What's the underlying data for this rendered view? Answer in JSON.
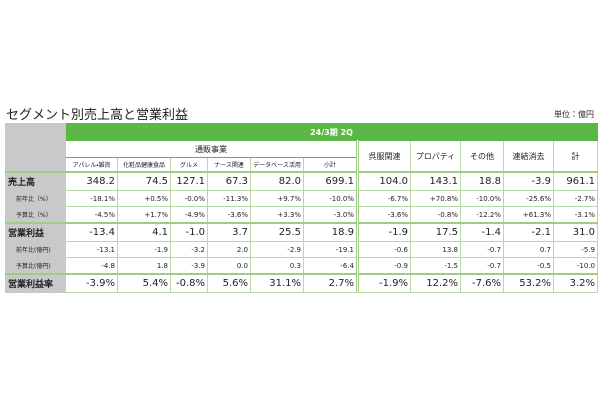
{
  "title": "セグメント別売上高と営業利益",
  "unit": "単位：億円",
  "table": {
    "period": "24/3期 2Q",
    "group": "通販事業",
    "columns": [
      "アパレル・雑貨",
      "化粧品健康食品",
      "グルメ",
      "ナース関連",
      "データベース活用",
      "小計"
    ],
    "other_columns": [
      "呉服関連",
      "プロパティ",
      "その他",
      "連結消去",
      "計"
    ],
    "rows": [
      {
        "label": "売上高",
        "values": [
          "348.2",
          "74.5",
          "127.1",
          "67.3",
          "82.0",
          "699.1",
          "104.0",
          "143.1",
          "18.8",
          "-3.9",
          "961.1"
        ]
      },
      {
        "label": "前年比（%）",
        "values": [
          "-18.1%",
          "+0.5%",
          "-0.0%",
          "-11.3%",
          "+9.7%",
          "-10.0%",
          "-6.7%",
          "+70.8%",
          "-10.0%",
          "-25.6%",
          "-2.7%"
        ]
      },
      {
        "label": "予算比（%）",
        "values": [
          "-4.5%",
          "+1.7%",
          "-4.9%",
          "-3.6%",
          "+3.3%",
          "-3.0%",
          "-3.6%",
          "-0.8%",
          "-12.2%",
          "+61.3%",
          "-3.1%"
        ]
      },
      {
        "label": "営業利益",
        "values": [
          "-13.4",
          "4.1",
          "-1.0",
          "3.7",
          "25.5",
          "18.9",
          "-1.9",
          "17.5",
          "-1.4",
          "-2.1",
          "31.0"
        ]
      },
      {
        "label": "前年比(億円)",
        "values": [
          "-13.1",
          "-1.9",
          "-3.2",
          "2.0",
          "-2.9",
          "-19.1",
          "-0.6",
          "13.8",
          "-0.7",
          "0.7",
          "-5.9"
        ]
      },
      {
        "label": "予算比(億円)",
        "values": [
          "-4.8",
          "1.8",
          "-3.9",
          "0.0",
          "0.3",
          "-6.4",
          "-0.9",
          "-1.5",
          "-0.7",
          "-0.5",
          "-10.0"
        ]
      },
      {
        "label": "営業利益率",
        "values": [
          "-3.9%",
          "5.4%",
          "-0.8%",
          "5.6%",
          "31.1%",
          "2.7%",
          "-1.9%",
          "12.2%",
          "-7.6%",
          "53.2%",
          "3.2%"
        ]
      }
    ]
  }
}
